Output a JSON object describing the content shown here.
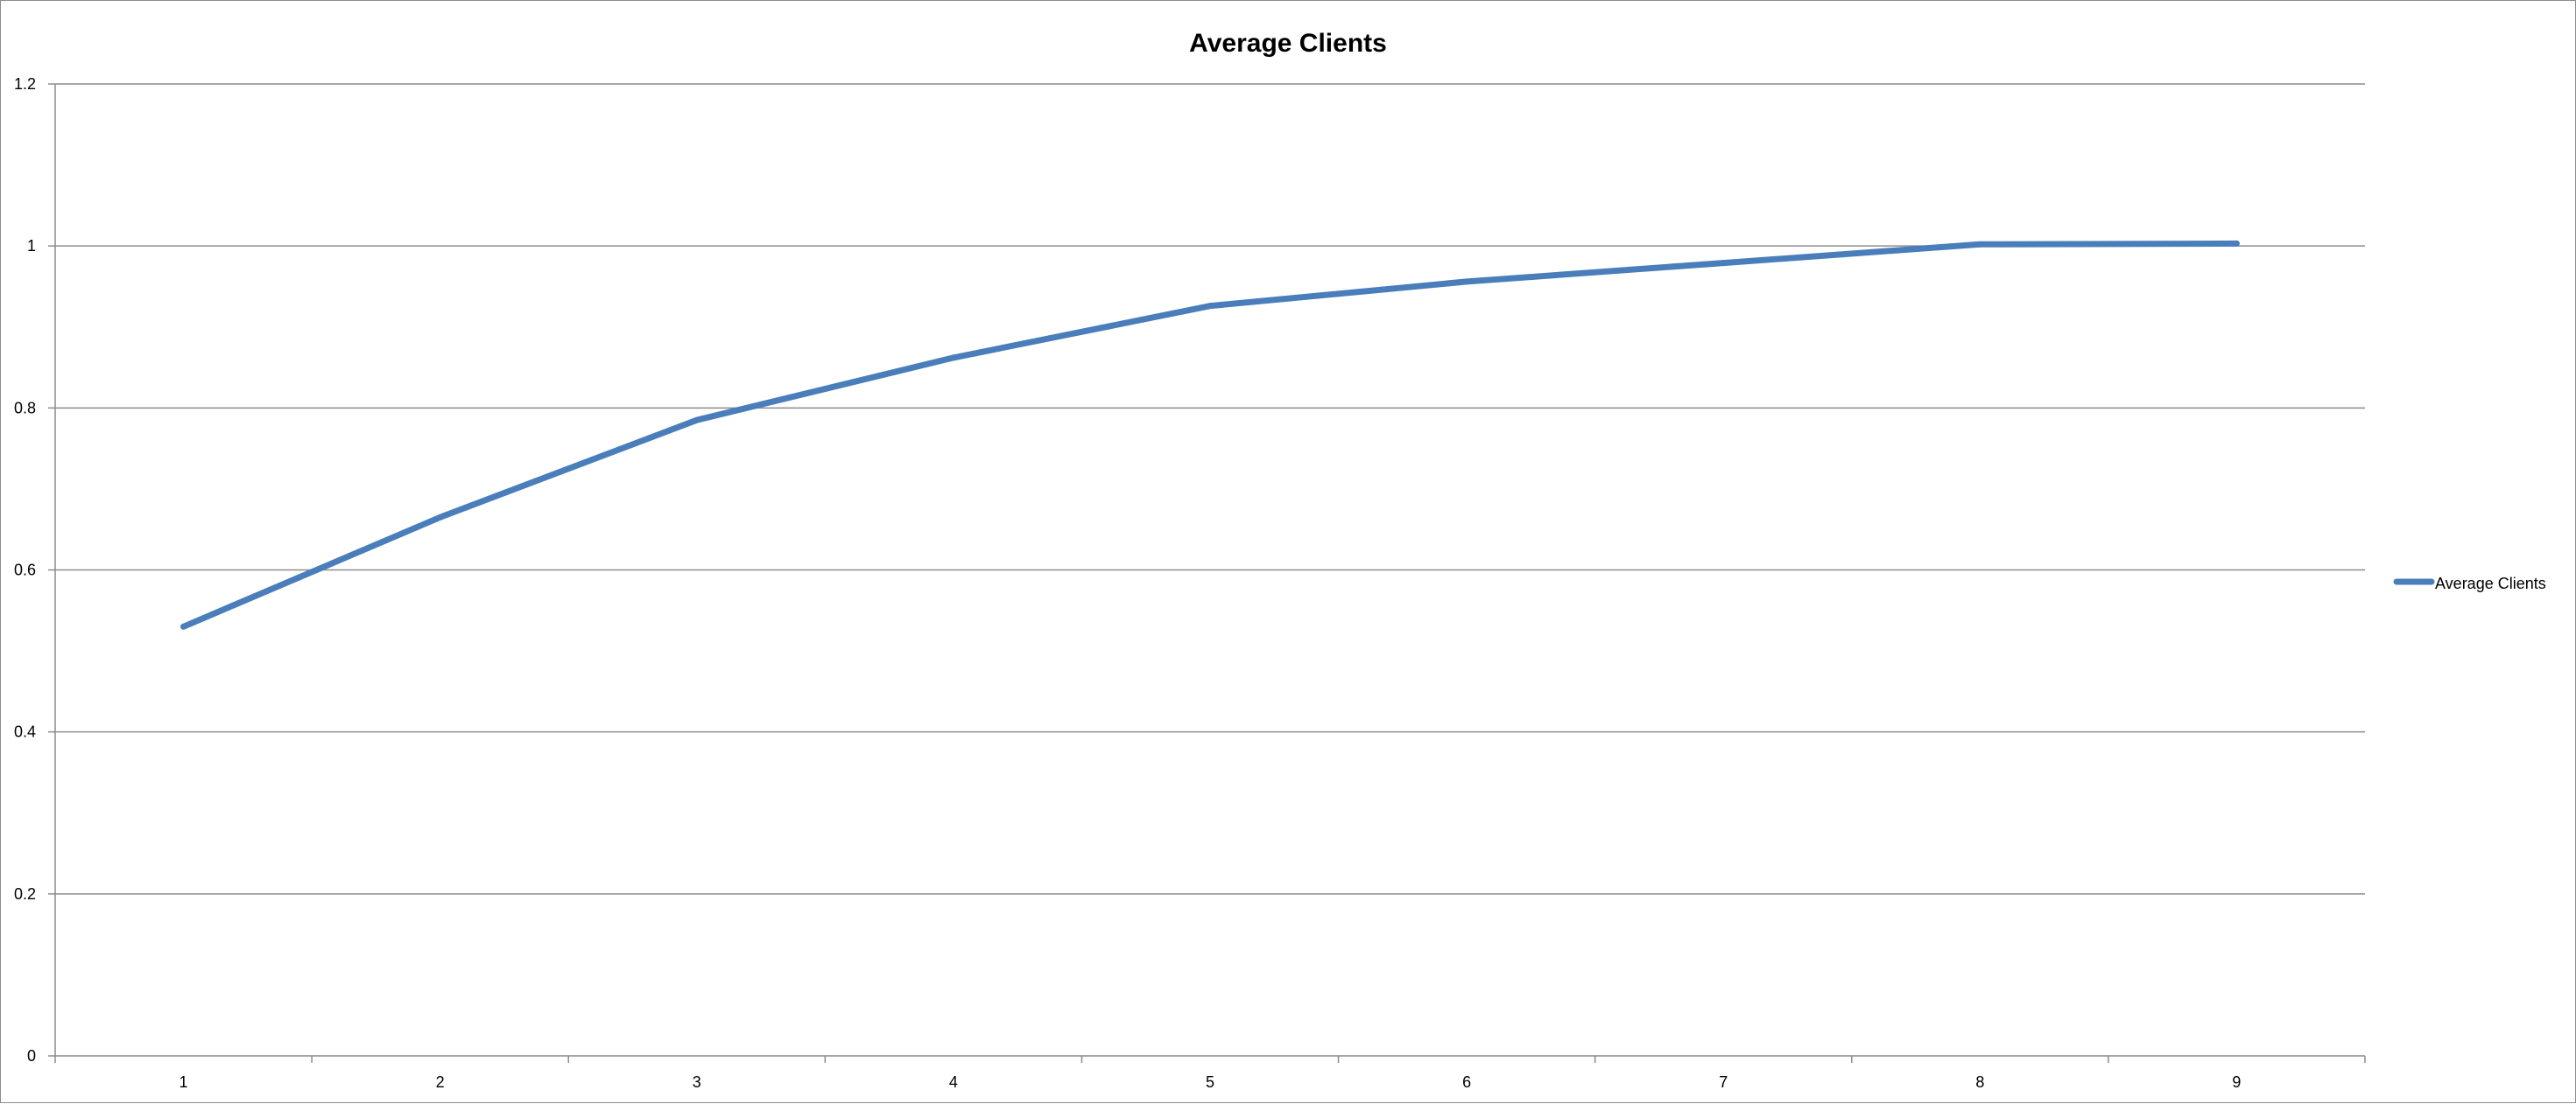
{
  "chart_data": {
    "type": "line",
    "title": "Average Clients",
    "xlabel": "",
    "ylabel": "",
    "categories": [
      "1",
      "2",
      "3",
      "4",
      "5",
      "6",
      "7",
      "8",
      "9"
    ],
    "series": [
      {
        "name": "Average Clients",
        "color": "#4a7ebb",
        "values": [
          0.53,
          0.665,
          0.785,
          0.862,
          0.926,
          0.956,
          0.979,
          1.002,
          1.003
        ]
      }
    ],
    "ylim": [
      0,
      1.2
    ],
    "yticks": [
      "0",
      "0.2",
      "0.4",
      "0.6",
      "0.8",
      "1",
      "1.2"
    ],
    "grid": true,
    "legend_position": "right"
  }
}
